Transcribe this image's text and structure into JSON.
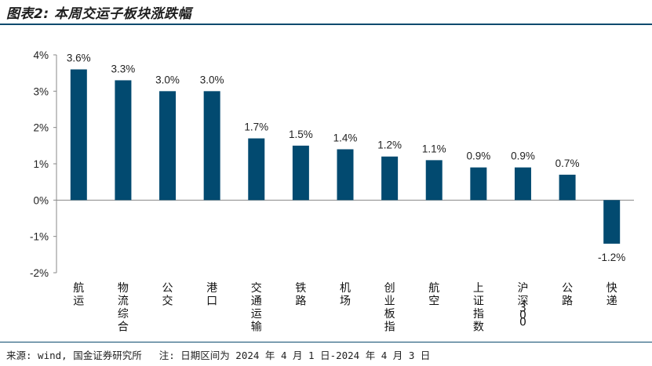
{
  "title": "图表2: 本周交运子板块涨跌幅",
  "footer": {
    "source": "来源: wind, 国金证券研究所",
    "note": "注: 日期区间为 2024 年 4 月 1 日-2024 年 4 月 3 日"
  },
  "colors": {
    "bar": "#024a70",
    "rule": "#0b4a6e"
  },
  "chart_data": {
    "type": "bar",
    "title": "",
    "xlabel": "",
    "ylabel": "",
    "ylim": [
      -2,
      4
    ],
    "yticks": [
      4,
      3,
      2,
      1,
      0,
      -1,
      -2
    ],
    "ytick_labels": [
      "4%",
      "3%",
      "2%",
      "1%",
      "0%",
      "-1%",
      "-2%"
    ],
    "grid": false,
    "categories": [
      "航运",
      "物流综合",
      "公交",
      "港口",
      "交通运输",
      "铁路",
      "机场",
      "创业板指",
      "航空",
      "上证指数",
      "沪深300",
      "公路",
      "快递"
    ],
    "values": [
      3.6,
      3.3,
      3.0,
      3.0,
      1.7,
      1.5,
      1.4,
      1.2,
      1.1,
      0.9,
      0.9,
      0.7,
      -1.2
    ],
    "value_labels": [
      "3.6%",
      "3.3%",
      "3.0%",
      "3.0%",
      "1.7%",
      "1.5%",
      "1.4%",
      "1.2%",
      "1.1%",
      "0.9%",
      "0.9%",
      "0.7%",
      "-1.2%"
    ]
  }
}
